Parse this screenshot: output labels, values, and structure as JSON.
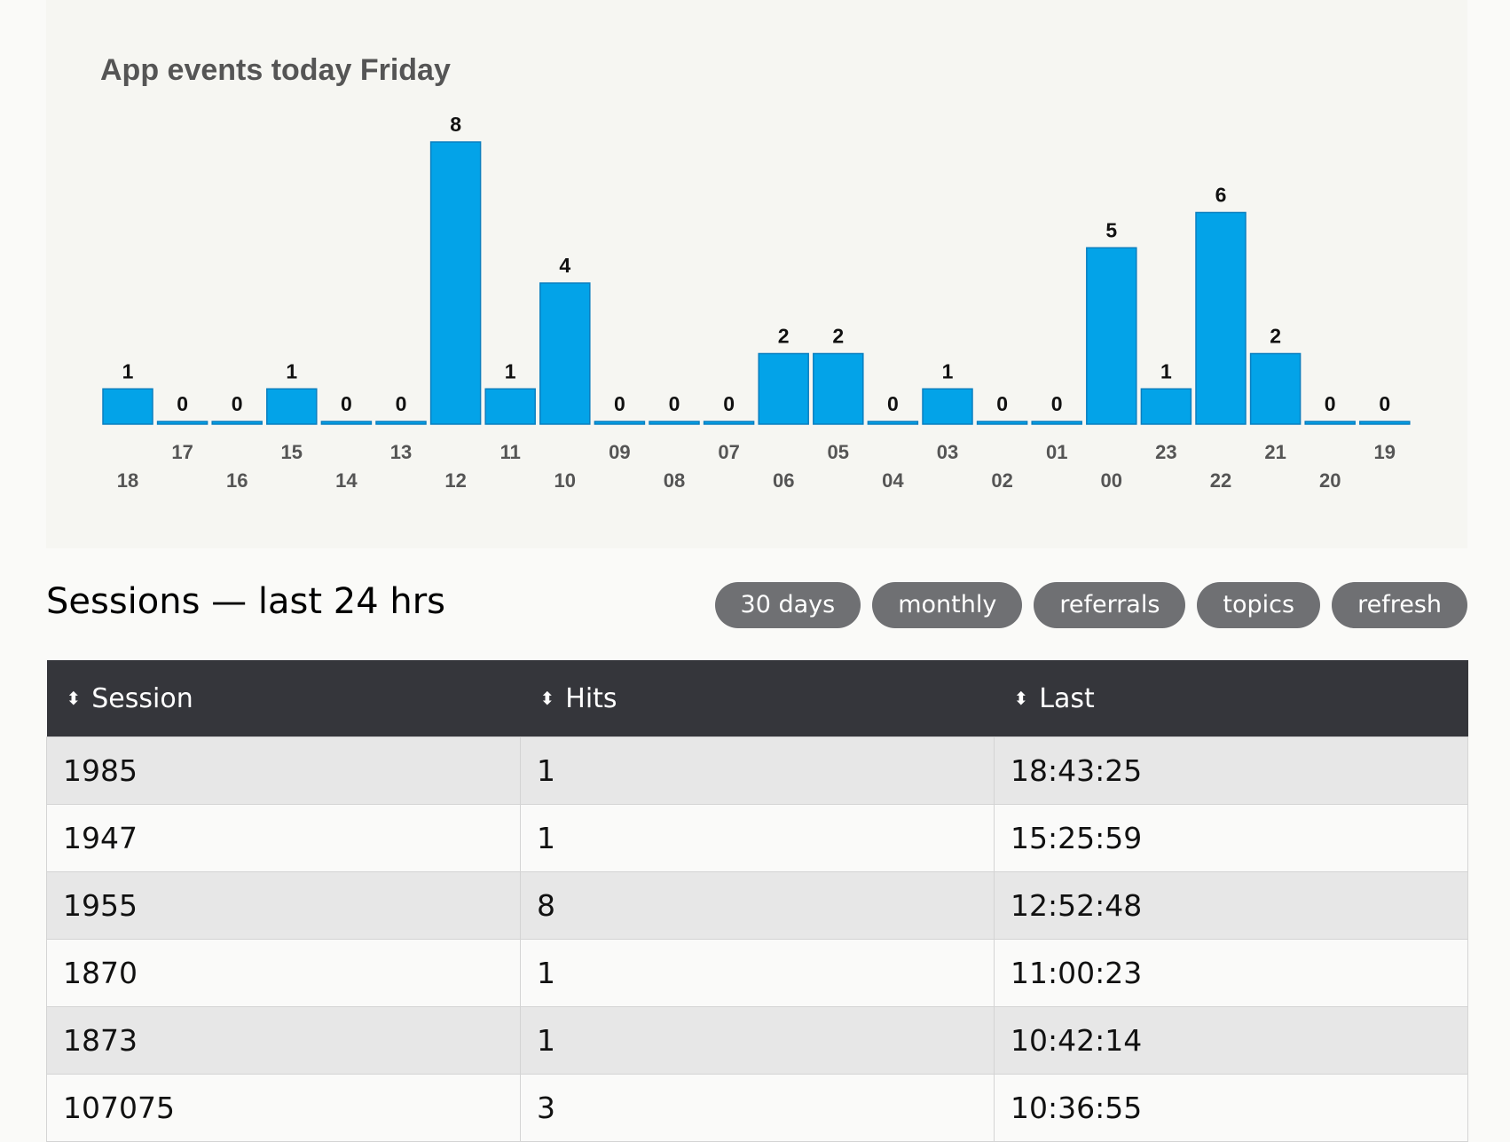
{
  "chart_data": {
    "type": "bar",
    "title": "App events today Friday",
    "categories": [
      "18",
      "17",
      "16",
      "15",
      "14",
      "13",
      "12",
      "11",
      "10",
      "09",
      "08",
      "07",
      "06",
      "05",
      "04",
      "03",
      "02",
      "01",
      "00",
      "23",
      "22",
      "21",
      "20",
      "19"
    ],
    "values": [
      1,
      0,
      0,
      1,
      0,
      0,
      8,
      1,
      4,
      0,
      0,
      0,
      2,
      2,
      0,
      1,
      0,
      0,
      5,
      1,
      6,
      2,
      0,
      0
    ],
    "ylim": [
      0,
      8
    ],
    "grid": false,
    "colors": {
      "bar": "#03a3e8",
      "bar_border": "#0b7fbf"
    }
  },
  "sessions": {
    "title": "Sessions — last 24 hrs",
    "buttons": [
      "30 days",
      "monthly",
      "referrals",
      "topics",
      "refresh"
    ],
    "columns": [
      "Session",
      "Hits",
      "Last"
    ],
    "rows": [
      [
        "1985",
        "1",
        "18:43:25"
      ],
      [
        "1947",
        "1",
        "15:25:59"
      ],
      [
        "1955",
        "8",
        "12:52:48"
      ],
      [
        "1870",
        "1",
        "11:00:23"
      ],
      [
        "1873",
        "1",
        "10:42:14"
      ],
      [
        "107075",
        "3",
        "10:36:55"
      ]
    ],
    "sort_icon": "sort-updown-icon"
  }
}
